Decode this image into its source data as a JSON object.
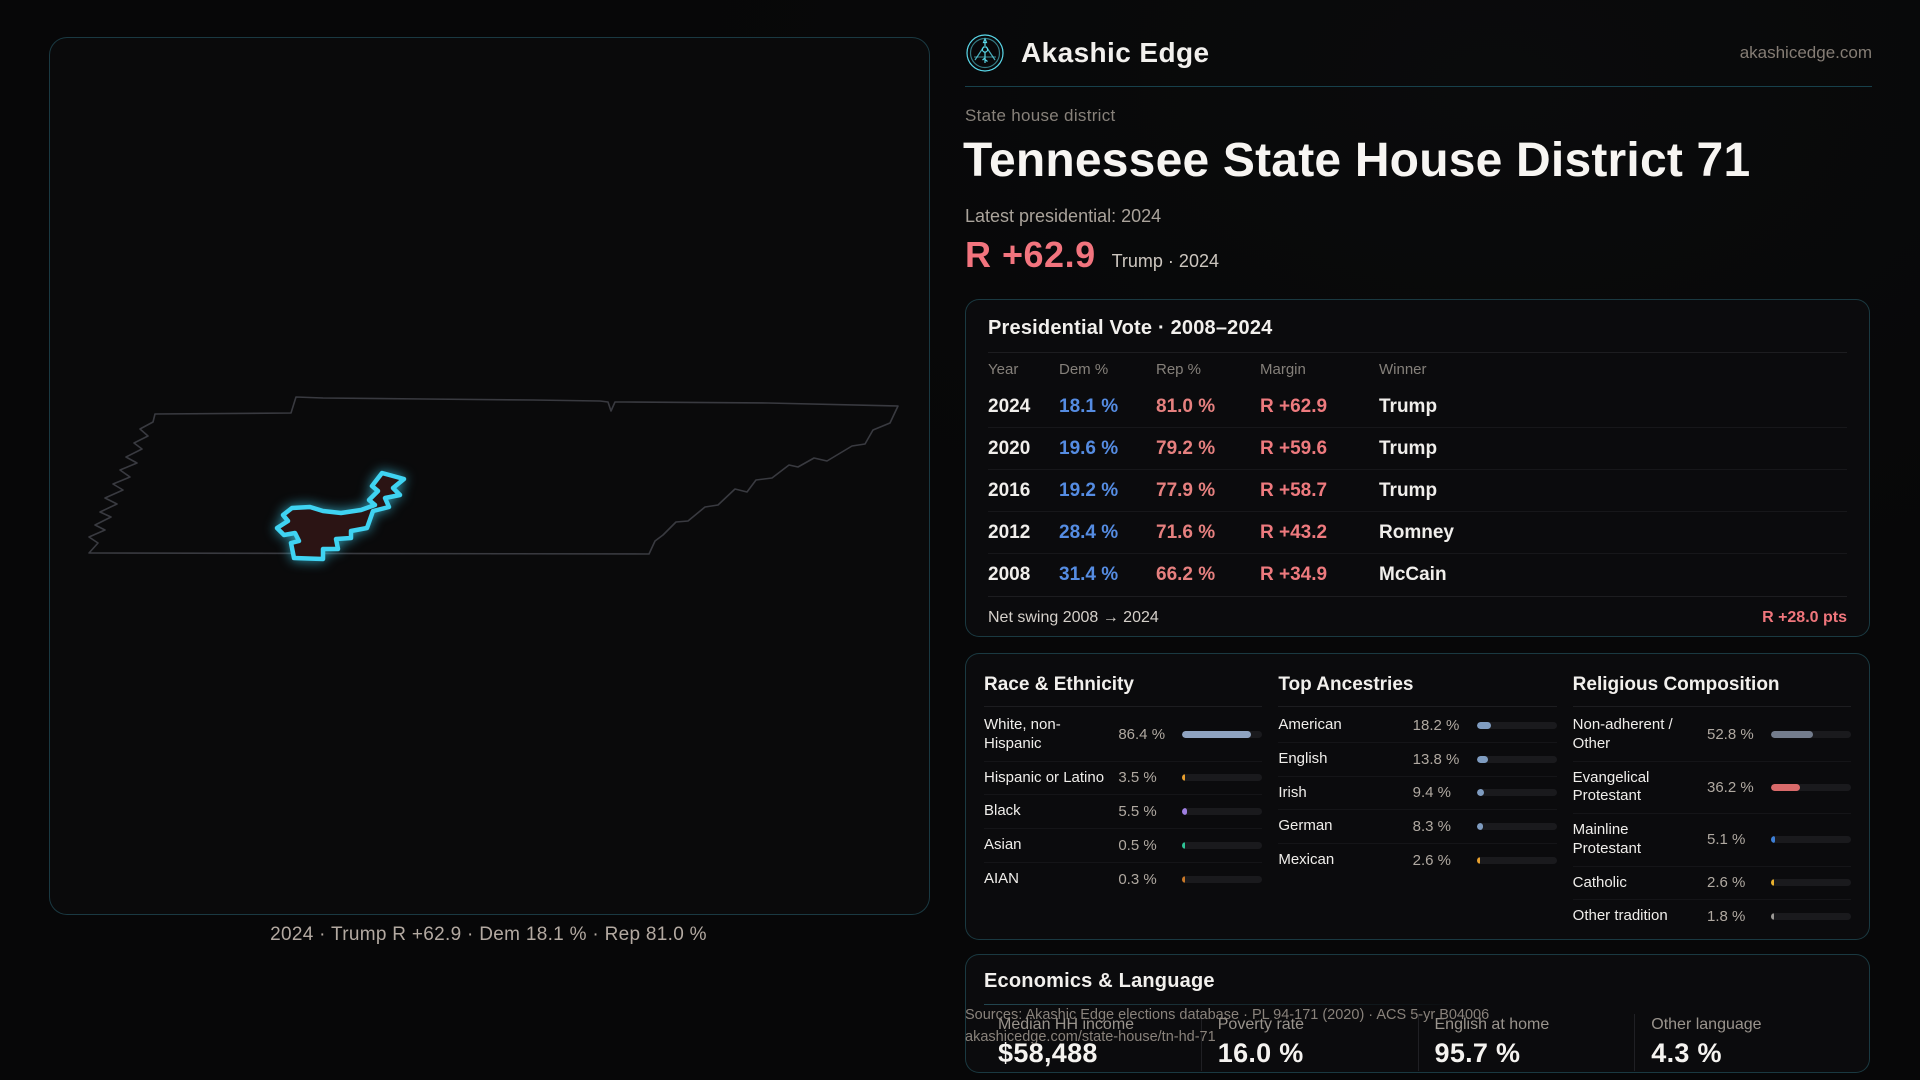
{
  "brand": {
    "name": "Akashic Edge",
    "domain": "akashicedge.com"
  },
  "header": {
    "kicker": "State house district",
    "title": "Tennessee State House District 71",
    "latest_label": "Latest presidential: 2024",
    "margin_value": "R +62.9",
    "margin_context": "Trump · 2024"
  },
  "map": {
    "caption": "2024 · Trump R +62.9 · Dem 18.1 % · Rep 81.0 %"
  },
  "presidential": {
    "title": "Presidential Vote · 2008–2024",
    "columns": [
      "Year",
      "Dem %",
      "Rep %",
      "Margin",
      "Winner"
    ],
    "rows": [
      {
        "year": "2024",
        "dem": "18.1 %",
        "rep": "81.0 %",
        "margin": "R +62.9",
        "winner": "Trump"
      },
      {
        "year": "2020",
        "dem": "19.6 %",
        "rep": "79.2 %",
        "margin": "R +59.6",
        "winner": "Trump"
      },
      {
        "year": "2016",
        "dem": "19.2 %",
        "rep": "77.9 %",
        "margin": "R +58.7",
        "winner": "Trump"
      },
      {
        "year": "2012",
        "dem": "28.4 %",
        "rep": "71.6 %",
        "margin": "R +43.2",
        "winner": "Romney"
      },
      {
        "year": "2008",
        "dem": "31.4 %",
        "rep": "66.2 %",
        "margin": "R +34.9",
        "winner": "McCain"
      }
    ],
    "net_swing_label": "Net swing 2008 → 2024",
    "net_swing_value": "R +28.0 pts"
  },
  "demographics": {
    "panels": [
      {
        "title": "Race & Ethnicity",
        "rows": [
          {
            "label": "White, non-Hispanic",
            "value": "86.4 %",
            "pct": 86.4,
            "color": "#8fa3c0"
          },
          {
            "label": "Hispanic or Latino",
            "value": "3.5 %",
            "pct": 3.5,
            "color": "#e89f2e"
          },
          {
            "label": "Black",
            "value": "5.5 %",
            "pct": 5.5,
            "color": "#9f7fe0"
          },
          {
            "label": "Asian",
            "value": "0.5 %",
            "pct": 0.5,
            "color": "#2ec496"
          },
          {
            "label": "AIAN",
            "value": "0.3 %",
            "pct": 0.3,
            "color": "#c87828"
          }
        ]
      },
      {
        "title": "Top Ancestries",
        "rows": [
          {
            "label": "American",
            "value": "18.2 %",
            "pct": 18.2,
            "color": "#7f9cc0"
          },
          {
            "label": "English",
            "value": "13.8 %",
            "pct": 13.8,
            "color": "#7f9cc0"
          },
          {
            "label": "Irish",
            "value": "9.4 %",
            "pct": 9.4,
            "color": "#7f9cc0"
          },
          {
            "label": "German",
            "value": "8.3 %",
            "pct": 8.3,
            "color": "#7f9cc0"
          },
          {
            "label": "Mexican",
            "value": "2.6 %",
            "pct": 2.6,
            "color": "#e8a02e"
          }
        ]
      },
      {
        "title": "Religious Composition",
        "rows": [
          {
            "label": "Non-adherent / Other",
            "value": "52.8 %",
            "pct": 52.8,
            "color": "#737c8c"
          },
          {
            "label": "Evangelical Protestant",
            "value": "36.2 %",
            "pct": 36.2,
            "color": "#d96a6a"
          },
          {
            "label": "Mainline Protestant",
            "value": "5.1 %",
            "pct": 5.1,
            "color": "#3d7fd6"
          },
          {
            "label": "Catholic",
            "value": "2.6 %",
            "pct": 2.6,
            "color": "#e8b02e"
          },
          {
            "label": "Other tradition",
            "value": "1.8 %",
            "pct": 1.8,
            "color": "#9a9894"
          }
        ]
      }
    ]
  },
  "economics": {
    "title": "Economics & Language",
    "stats": [
      {
        "label": "Median HH income",
        "value": "$58,488"
      },
      {
        "label": "Poverty rate",
        "value": "16.0 %"
      },
      {
        "label": "English at home",
        "value": "95.7 %"
      },
      {
        "label": "Other language",
        "value": "4.3 %"
      }
    ]
  },
  "footer": {
    "line1": "Sources: Akashic Edge elections database · PL 94-171 (2020) · ACS 5-yr B04006",
    "line2": "akashicedge.com/state-house/tn-hd-71"
  },
  "colors": {
    "accent_cyan": "#3fd3f2",
    "margin_red": "#f2747e",
    "dem_blue": "#558ce2",
    "rep_red": "#e6807f",
    "card_border": "#2d7f93"
  }
}
